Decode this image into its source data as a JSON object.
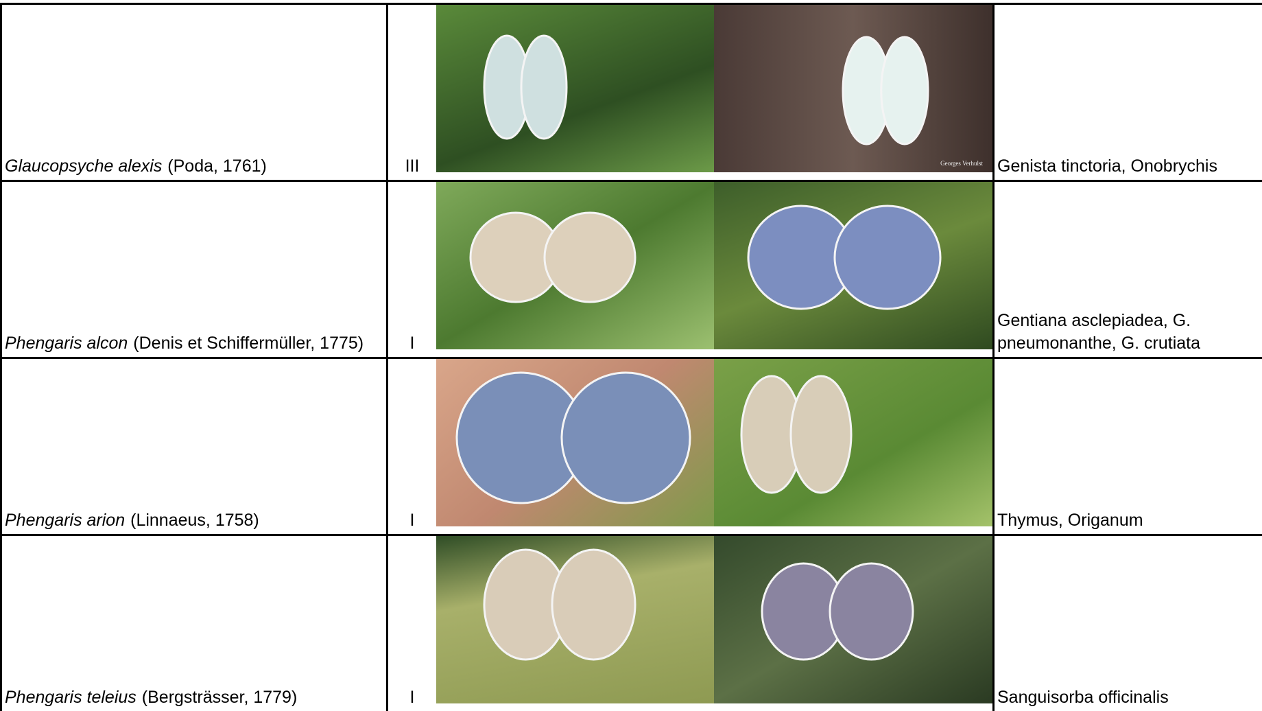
{
  "table": {
    "rows": [
      {
        "name": "Glaucopsyche alexis",
        "author": "(Poda, 1761)",
        "category": "III",
        "photo_credit": "Georges Verhulst",
        "plants": "Genista tinctoria, Onobrychis"
      },
      {
        "name": "Phengaris alcon",
        "author": "(Denis et Schiffermüller, 1775)",
        "category": "I",
        "plants": "Gentiana asclepiadea, G. pneumonanthe, G. crutiata"
      },
      {
        "name": "Phengaris arion",
        "author": "(Linnaeus, 1758)",
        "category": "I",
        "plants": "Thymus, Origanum"
      },
      {
        "name": "Phengaris teleius",
        "author": "(Bergsträsser, 1779)",
        "category": "I",
        "plants": "Sanguisorba officinalis"
      }
    ]
  }
}
